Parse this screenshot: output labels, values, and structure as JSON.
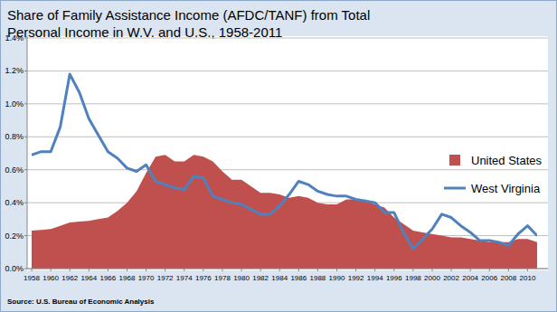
{
  "chart_data": {
    "type": "line",
    "title": "Share of Family Assistance Income (AFDC/TANF) from Total Personal Income in W.V. and U.S., 1958-2011",
    "annotations": [
      "Source: U.S. Bureau of Economic Analysis"
    ],
    "x": [
      1958,
      1959,
      1960,
      1961,
      1962,
      1963,
      1964,
      1965,
      1966,
      1967,
      1968,
      1969,
      1970,
      1971,
      1972,
      1973,
      1974,
      1975,
      1976,
      1977,
      1978,
      1979,
      1980,
      1981,
      1982,
      1983,
      1984,
      1985,
      1986,
      1987,
      1988,
      1989,
      1990,
      1991,
      1992,
      1993,
      1994,
      1995,
      1996,
      1997,
      1998,
      1999,
      2000,
      2001,
      2002,
      2003,
      2004,
      2005,
      2006,
      2007,
      2008,
      2009,
      2010,
      2011
    ],
    "series": [
      {
        "name": "United States",
        "type": "area",
        "color": "#c0504d",
        "values": [
          0.23,
          0.235,
          0.24,
          0.26,
          0.28,
          0.285,
          0.29,
          0.3,
          0.31,
          0.35,
          0.4,
          0.47,
          0.58,
          0.68,
          0.69,
          0.65,
          0.65,
          0.69,
          0.68,
          0.65,
          0.59,
          0.54,
          0.54,
          0.5,
          0.46,
          0.46,
          0.45,
          0.43,
          0.44,
          0.43,
          0.4,
          0.39,
          0.39,
          0.42,
          0.42,
          0.41,
          0.39,
          0.37,
          0.31,
          0.27,
          0.23,
          0.22,
          0.21,
          0.2,
          0.19,
          0.19,
          0.18,
          0.17,
          0.16,
          0.16,
          0.16,
          0.18,
          0.18,
          0.16
        ]
      },
      {
        "name": "West Virginia",
        "type": "line",
        "color": "#4f81bd",
        "values": [
          0.69,
          0.71,
          0.71,
          0.86,
          1.18,
          1.07,
          0.91,
          0.81,
          0.71,
          0.67,
          0.61,
          0.59,
          0.63,
          0.53,
          0.51,
          0.49,
          0.48,
          0.56,
          0.55,
          0.44,
          0.42,
          0.4,
          0.39,
          0.36,
          0.33,
          0.33,
          0.38,
          0.45,
          0.53,
          0.51,
          0.47,
          0.45,
          0.44,
          0.44,
          0.42,
          0.41,
          0.4,
          0.34,
          0.34,
          0.22,
          0.12,
          0.18,
          0.24,
          0.33,
          0.31,
          0.26,
          0.22,
          0.17,
          0.17,
          0.16,
          0.14,
          0.21,
          0.26,
          0.2
        ]
      }
    ],
    "xlim": [
      1958,
      2011
    ],
    "xticks": [
      1958,
      1960,
      1962,
      1964,
      1966,
      1968,
      1970,
      1972,
      1974,
      1976,
      1978,
      1980,
      1982,
      1984,
      1986,
      1988,
      1990,
      1992,
      1994,
      1996,
      1998,
      2000,
      2002,
      2004,
      2006,
      2008,
      2010
    ],
    "ylim": [
      0,
      1.4
    ],
    "yticks": [
      {
        "value": 0,
        "label": "0.0%"
      },
      {
        "value": 0.2,
        "label": "0.2%"
      },
      {
        "value": 0.4,
        "label": "0.4%"
      },
      {
        "value": 0.6,
        "label": "0.6%"
      },
      {
        "value": 0.8,
        "label": "0.8%"
      },
      {
        "value": 1.0,
        "label": "1.0%"
      },
      {
        "value": 1.2,
        "label": "1.2%"
      },
      {
        "value": 1.4,
        "label": "1.4%"
      }
    ],
    "grid": true,
    "legend": "right"
  }
}
